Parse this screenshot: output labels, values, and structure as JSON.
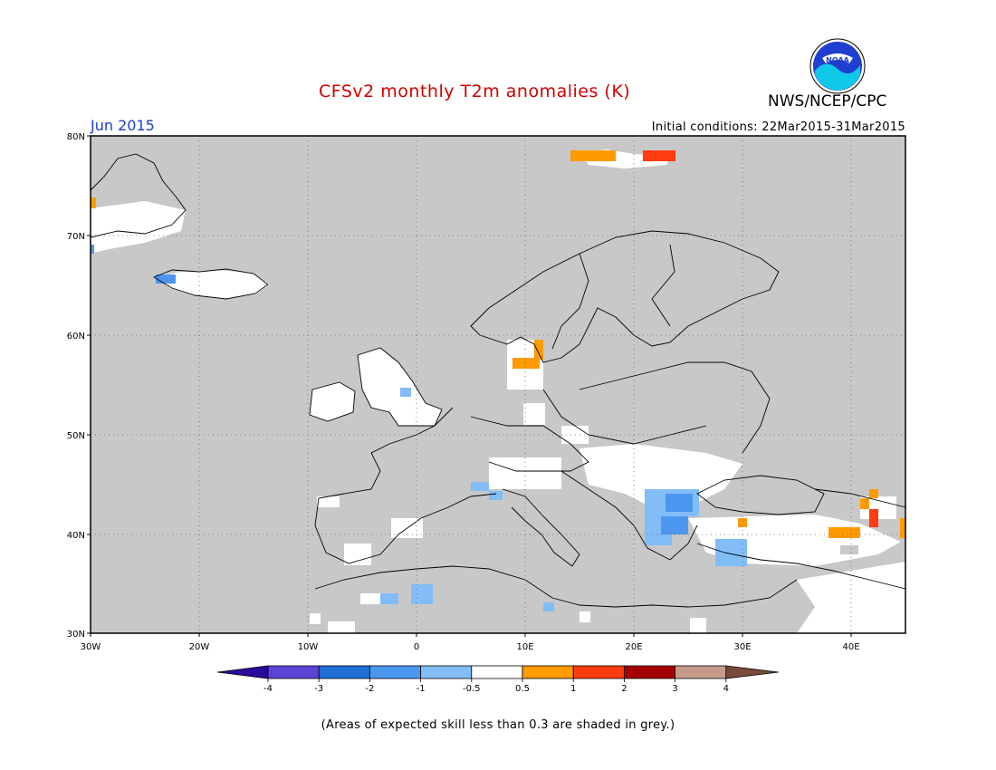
{
  "title": "CFSv2 monthly T2m anomalies (K)",
  "agency": "NWS/NCEP/CPC",
  "logo_text": "NOAA",
  "month_label": "Jun 2015",
  "initial_conditions": "Initial conditions: 22Mar2015-31Mar2015",
  "footnote": "(Areas of expected skill less than 0.3 are shaded in grey.)",
  "map": {
    "lat_ticks": [
      "80N",
      "70N",
      "60N",
      "50N",
      "40N",
      "30N"
    ],
    "lon_ticks": [
      "30W",
      "20W",
      "10W",
      "0",
      "10E",
      "20E",
      "30E",
      "40E"
    ],
    "background_color": "#c8c8c8",
    "land_no_skill_color": "#ffffff"
  },
  "colorbar": {
    "labels": [
      "-4",
      "-3",
      "-2",
      "-1",
      "-0.5",
      "0.5",
      "1",
      "2",
      "3",
      "4"
    ],
    "colors": [
      "#2a0a9c",
      "#5a44d6",
      "#1f6fd6",
      "#4c96f0",
      "#82bdf7",
      "#ffffff",
      "#ff9a00",
      "#ff3c10",
      "#a50000",
      "#c69a8a",
      "#7a4a3a"
    ]
  }
}
